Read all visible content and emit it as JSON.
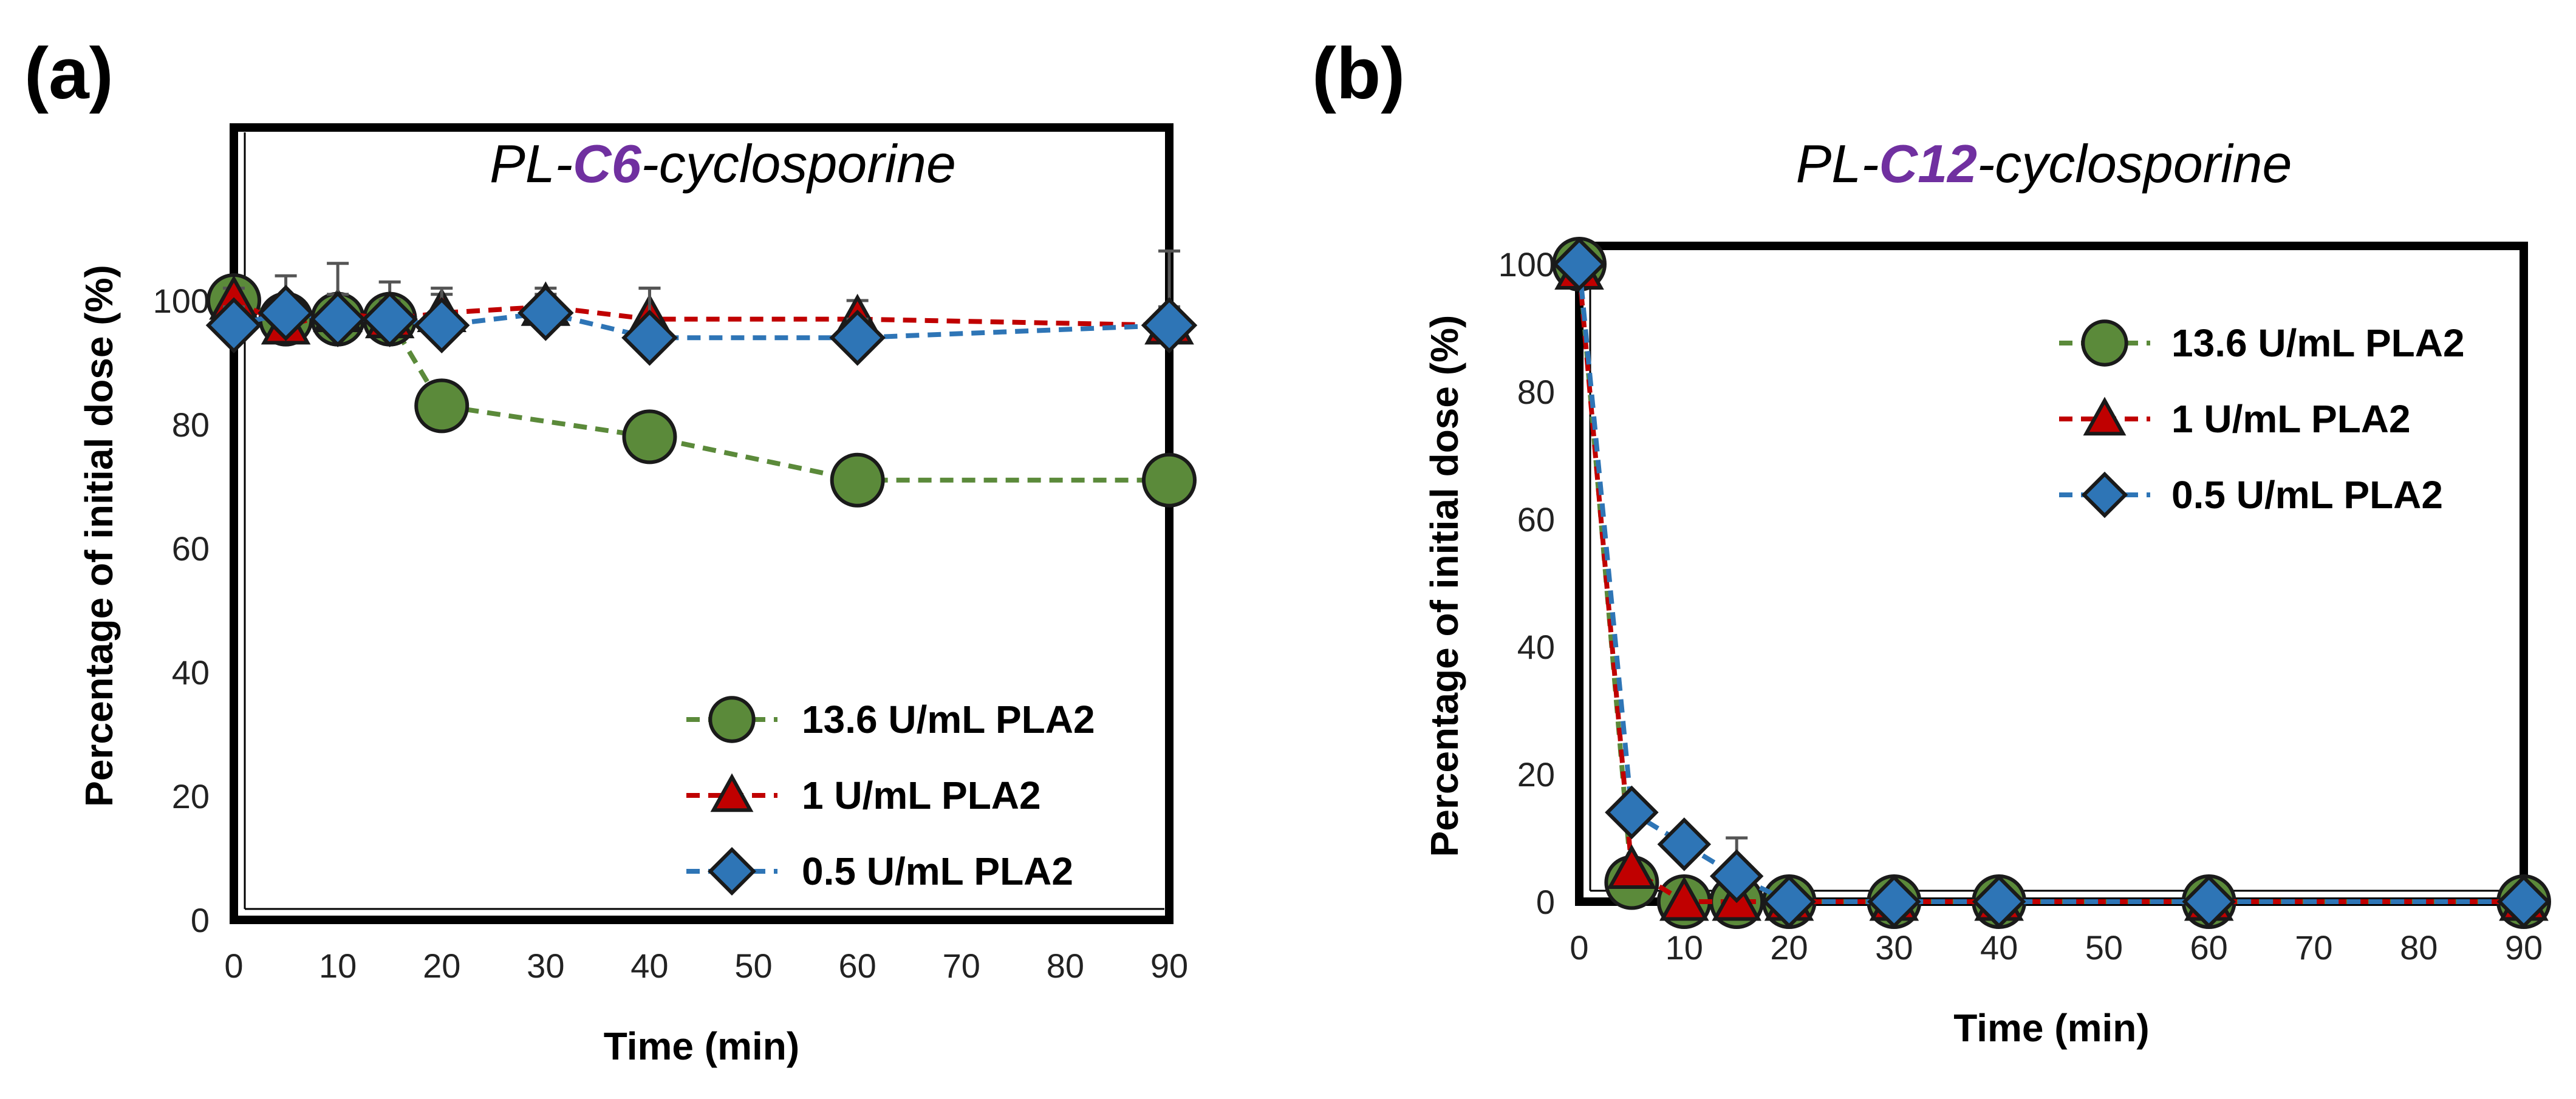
{
  "chart_data": [
    {
      "type": "line",
      "panel_label": "(a)",
      "title": {
        "prefix": "PL-",
        "accent": "C6",
        "suffix": "-cyclosporine"
      },
      "xlabel": "Time (min)",
      "ylabel": "Percentage of initial dose (%)",
      "xlim": [
        0,
        90
      ],
      "ylim": [
        0,
        100
      ],
      "xticks": [
        0,
        10,
        20,
        30,
        40,
        50,
        60,
        70,
        80,
        90
      ],
      "yticks": [
        0,
        20,
        40,
        60,
        80,
        100
      ],
      "legend": "bottom-right",
      "grid": false,
      "series": [
        {
          "name": "13.6 U/mL PLA2",
          "color": "#5b8a3a",
          "marker": "circle",
          "x": [
            0,
            5,
            10,
            15,
            20,
            40,
            60,
            90
          ],
          "y": [
            100,
            97,
            97,
            97,
            83,
            78,
            71,
            71
          ],
          "err": [
            2,
            2,
            2,
            2,
            2,
            2,
            2,
            2
          ]
        },
        {
          "name": "1 U/mL PLA2",
          "color": "#c00000",
          "marker": "triangle",
          "x": [
            0,
            5,
            10,
            15,
            20,
            30,
            40,
            60,
            90
          ],
          "y": [
            100,
            96,
            98,
            97,
            98,
            99,
            97,
            97,
            96
          ],
          "err": [
            2,
            3,
            3,
            3,
            3,
            3,
            5,
            3,
            12
          ]
        },
        {
          "name": "0.5 U/mL PLA2",
          "color": "#2e75b6",
          "marker": "diamond",
          "x": [
            0,
            5,
            10,
            15,
            20,
            30,
            40,
            60,
            90
          ],
          "y": [
            96,
            98,
            97,
            97,
            96,
            98,
            94,
            94,
            96
          ],
          "err": [
            3,
            6,
            9,
            6,
            6,
            3,
            8,
            3,
            3
          ]
        }
      ]
    },
    {
      "type": "line",
      "panel_label": "(b)",
      "title": {
        "prefix": "PL-",
        "accent": "C12",
        "suffix": "-cyclosporine"
      },
      "xlabel": "Time (min)",
      "ylabel": "Percentage of initial dose (%)",
      "xlim": [
        0,
        90
      ],
      "ylim": [
        0,
        100
      ],
      "xticks": [
        0,
        10,
        20,
        30,
        40,
        50,
        60,
        70,
        80,
        90
      ],
      "yticks": [
        0,
        20,
        40,
        60,
        80,
        100
      ],
      "legend": "top-right",
      "grid": false,
      "series": [
        {
          "name": "13.6 U/mL PLA2",
          "color": "#5b8a3a",
          "marker": "circle",
          "x": [
            0,
            5,
            10,
            15,
            20,
            30,
            40,
            60,
            90
          ],
          "y": [
            100,
            3,
            0,
            0,
            0,
            0,
            0,
            0,
            0
          ],
          "err": [
            0,
            0,
            0,
            0,
            0,
            0,
            0,
            0,
            0
          ]
        },
        {
          "name": "1 U/mL PLA2",
          "color": "#c00000",
          "marker": "triangle",
          "x": [
            0,
            5,
            10,
            15,
            20,
            30,
            40,
            60,
            90
          ],
          "y": [
            99,
            5,
            0,
            0,
            0,
            0,
            0,
            0,
            0
          ],
          "err": [
            0,
            0,
            0,
            0,
            0,
            0,
            0,
            0,
            0
          ]
        },
        {
          "name": "0.5 U/mL PLA2",
          "color": "#2e75b6",
          "marker": "diamond",
          "x": [
            0,
            5,
            10,
            15,
            20,
            30,
            40,
            60,
            90
          ],
          "y": [
            100,
            14,
            9,
            4,
            0,
            0,
            0,
            0,
            0
          ],
          "err": [
            0,
            0,
            0,
            6,
            0,
            0,
            0,
            0,
            0
          ]
        }
      ]
    }
  ]
}
